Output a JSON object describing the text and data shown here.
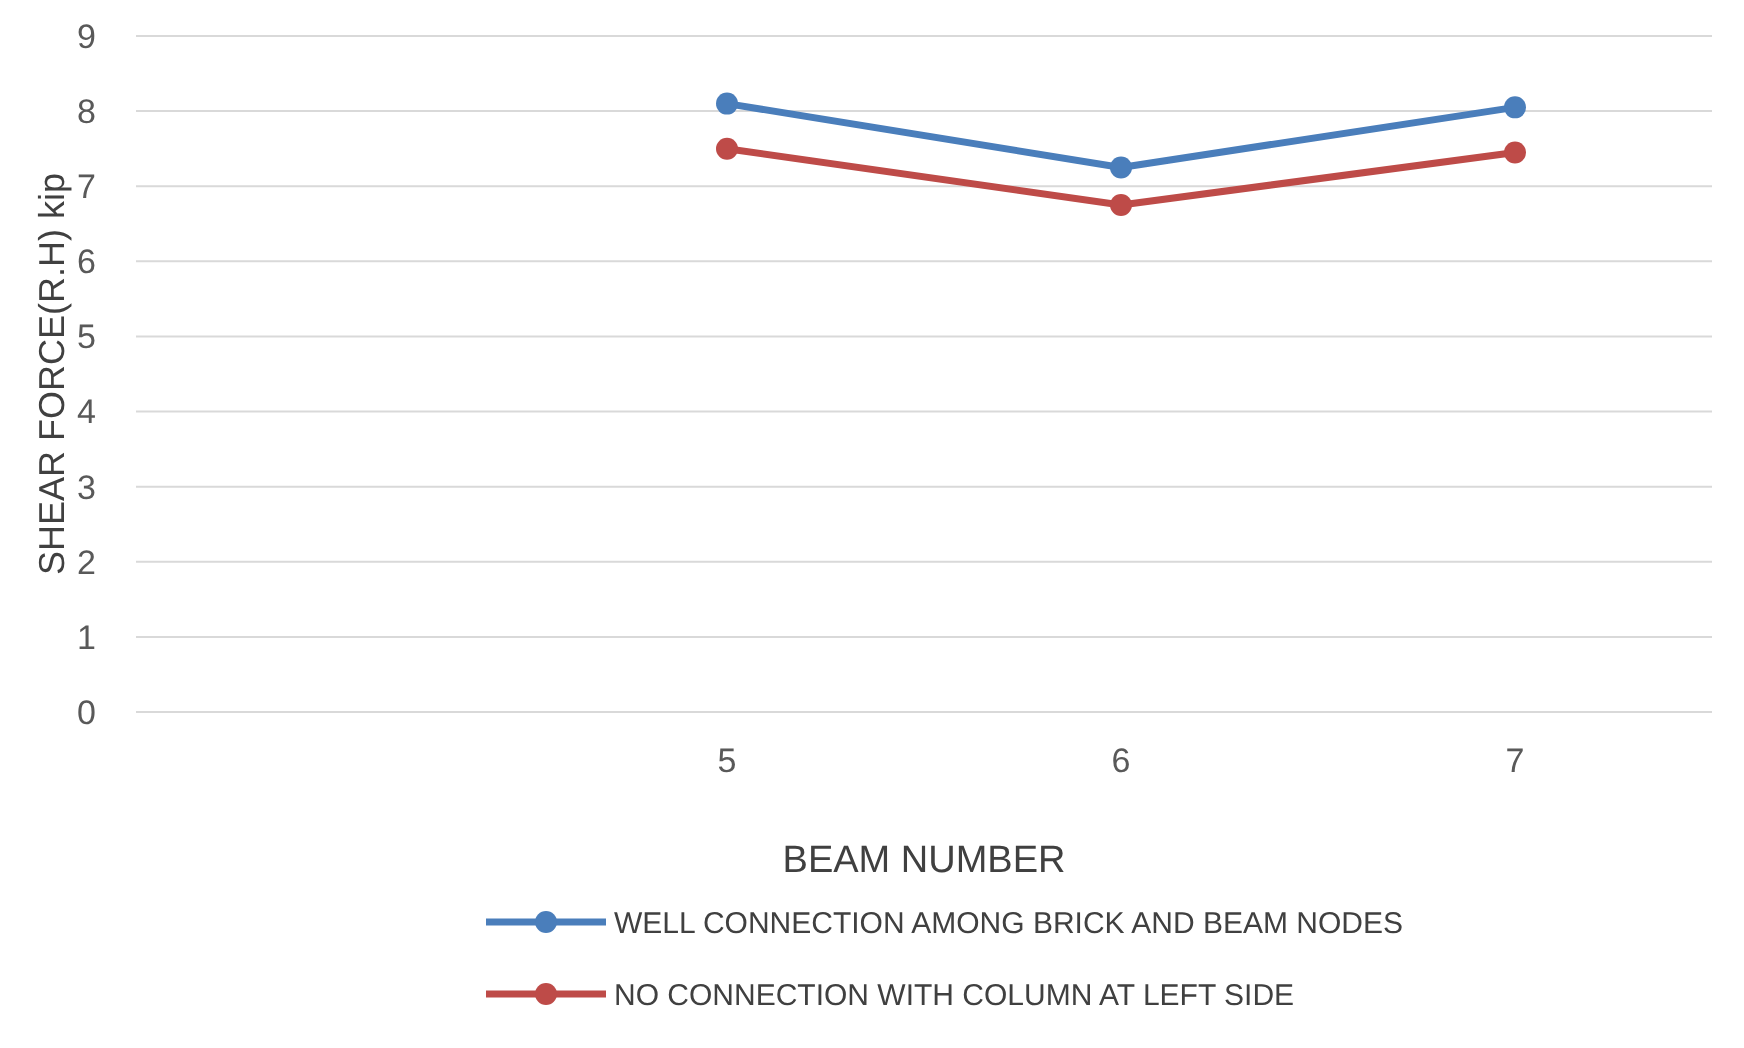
{
  "chart_data": {
    "type": "line",
    "xlabel": "BEAM NUMBER",
    "ylabel": "SHEAR FORCE(R.H) kip",
    "categories": [
      null,
      "5",
      "6",
      "7"
    ],
    "series": [
      {
        "name": "WELL CONNECTION AMONG BRICK AND BEAM NODES",
        "color": "#4a7ebb",
        "values": [
          null,
          8.1,
          7.25,
          8.05
        ]
      },
      {
        "name": "NO CONNECTION WITH COLUMN AT LEFT SIDE",
        "color": "#be4b48",
        "values": [
          null,
          7.5,
          6.75,
          7.45
        ]
      }
    ],
    "ylim": [
      0,
      9
    ],
    "yticks": [
      0,
      1,
      2,
      3,
      4,
      5,
      6,
      7,
      8,
      9
    ],
    "grid": "y",
    "legend": "bottom",
    "marker": "circle",
    "line_style": "solid"
  }
}
